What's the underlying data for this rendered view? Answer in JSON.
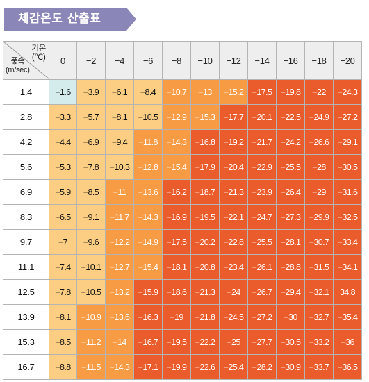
{
  "title": "체감온도 산출표",
  "corner": {
    "temp_label": "기온",
    "temp_unit": "(℃)",
    "wind_label": "풍속",
    "wind_unit": "(m/sec)"
  },
  "colors": {
    "banner": "#8a86b8",
    "cyan": "#d4ecec",
    "light": "#fcce83",
    "mid": "#f79b44",
    "dark": "#ea5c2b"
  },
  "temps": [
    "0",
    "−2",
    "−4",
    "−6",
    "−8",
    "−10",
    "−12",
    "−14",
    "−16",
    "−18",
    "−20"
  ],
  "rows": [
    {
      "speed": "1.4",
      "values": [
        "−1.6",
        "−3.9",
        "−6.1",
        "−8.4",
        "−10.7",
        "−13",
        "−15.2",
        "−17.5",
        "−19.8",
        "−22",
        "−24.3"
      ],
      "levels": [
        "cyan",
        "light",
        "light",
        "light",
        "mid",
        "mid",
        "mid",
        "dark",
        "dark",
        "dark",
        "dark"
      ]
    },
    {
      "speed": "2.8",
      "values": [
        "−3.3",
        "−5.7",
        "−8.1",
        "−10.5",
        "−12.9",
        "−15.3",
        "−17.7",
        "−20.1",
        "−22.5",
        "−24.9",
        "−27.2"
      ],
      "levels": [
        "light",
        "light",
        "light",
        "light",
        "mid",
        "mid",
        "dark",
        "dark",
        "dark",
        "dark",
        "dark"
      ]
    },
    {
      "speed": "4.2",
      "values": [
        "−4.4",
        "−6.9",
        "−9.4",
        "−11.8",
        "−14.3",
        "−16.8",
        "−19.2",
        "−21.7",
        "−24.2",
        "−26.6",
        "−29.1"
      ],
      "levels": [
        "light",
        "light",
        "light",
        "mid",
        "mid",
        "dark",
        "dark",
        "dark",
        "dark",
        "dark",
        "dark"
      ]
    },
    {
      "speed": "5.6",
      "values": [
        "−5.3",
        "−7.8",
        "−10.3",
        "−12.8",
        "−15.4",
        "−17.9",
        "−20.4",
        "−22.9",
        "−25.5",
        "−28",
        "−30.5"
      ],
      "levels": [
        "light",
        "light",
        "light",
        "mid",
        "mid",
        "dark",
        "dark",
        "dark",
        "dark",
        "dark",
        "dark"
      ]
    },
    {
      "speed": "6.9",
      "values": [
        "−5.9",
        "−8.5",
        "−11",
        "−13.6",
        "−16.2",
        "−18.7",
        "−21.3",
        "−23.9",
        "−26.4",
        "−29",
        "−31.6"
      ],
      "levels": [
        "light",
        "light",
        "mid",
        "mid",
        "dark",
        "dark",
        "dark",
        "dark",
        "dark",
        "dark",
        "dark"
      ]
    },
    {
      "speed": "8.3",
      "values": [
        "−6.5",
        "−9.1",
        "−11.7",
        "−14.3",
        "−16.9",
        "−19.5",
        "−22.1",
        "−24.7",
        "−27.3",
        "−29.9",
        "−32.5"
      ],
      "levels": [
        "light",
        "light",
        "mid",
        "mid",
        "dark",
        "dark",
        "dark",
        "dark",
        "dark",
        "dark",
        "dark"
      ]
    },
    {
      "speed": "9.7",
      "values": [
        "−7",
        "−9.6",
        "−12.2",
        "−14.9",
        "−17.5",
        "−20.2",
        "−22.8",
        "−25.5",
        "−28.1",
        "−30.7",
        "−33.4"
      ],
      "levels": [
        "light",
        "light",
        "mid",
        "mid",
        "dark",
        "dark",
        "dark",
        "dark",
        "dark",
        "dark",
        "dark"
      ]
    },
    {
      "speed": "11.1",
      "values": [
        "−7.4",
        "−10.1",
        "−12.7",
        "−15.4",
        "−18.1",
        "−20.8",
        "−23.4",
        "−26.1",
        "−28.8",
        "−31.5",
        "−34.1"
      ],
      "levels": [
        "light",
        "light",
        "mid",
        "mid",
        "dark",
        "dark",
        "dark",
        "dark",
        "dark",
        "dark",
        "dark"
      ]
    },
    {
      "speed": "12.5",
      "values": [
        "−7.8",
        "−10.5",
        "−13.2",
        "−15.9",
        "−18.6",
        "−21.3",
        "−24",
        "−26.7",
        "−29.4",
        "−32.1",
        "34.8"
      ],
      "levels": [
        "light",
        "light",
        "mid",
        "dark",
        "dark",
        "dark",
        "dark",
        "dark",
        "dark",
        "dark",
        "dark"
      ]
    },
    {
      "speed": "13.9",
      "values": [
        "−8.1",
        "−10.9",
        "−13.6",
        "−16.3",
        "−19",
        "−21.8",
        "−24.5",
        "−27.2",
        "−30",
        "−32.7",
        "−35.4"
      ],
      "levels": [
        "light",
        "mid",
        "mid",
        "dark",
        "dark",
        "dark",
        "dark",
        "dark",
        "dark",
        "dark",
        "dark"
      ]
    },
    {
      "speed": "15.3",
      "values": [
        "−8.5",
        "−11.2",
        "−14",
        "−16.7",
        "−19.5",
        "−22.2",
        "−25",
        "−27.7",
        "−30.5",
        "−33.2",
        "−36"
      ],
      "levels": [
        "light",
        "mid",
        "mid",
        "dark",
        "dark",
        "dark",
        "dark",
        "dark",
        "dark",
        "dark",
        "dark"
      ]
    },
    {
      "speed": "16.7",
      "values": [
        "−8.8",
        "−11.5",
        "−14.3",
        "−17.1",
        "−19.9",
        "−22.6",
        "−25.4",
        "−28.2",
        "−30.9",
        "−33.7",
        "−36.5"
      ],
      "levels": [
        "light",
        "mid",
        "mid",
        "dark",
        "dark",
        "dark",
        "dark",
        "dark",
        "dark",
        "dark",
        "dark"
      ]
    }
  ]
}
